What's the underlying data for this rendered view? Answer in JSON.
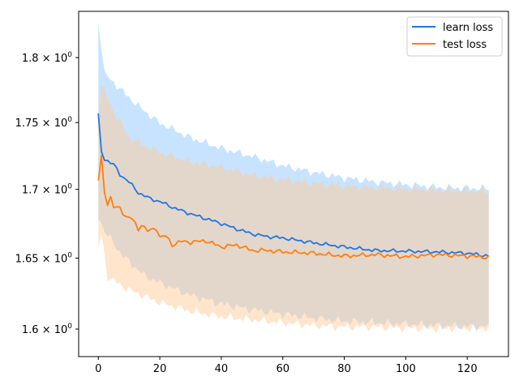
{
  "chart_data": {
    "type": "line",
    "title": "",
    "xlabel": "",
    "ylabel": "",
    "yscale": "log",
    "xlim": [
      -6.4,
      133.4
    ],
    "ylim": [
      1.581,
      1.8365
    ],
    "grid": false,
    "legend_position": "top-right",
    "x_ticks": [
      0,
      20,
      40,
      60,
      80,
      100,
      120
    ],
    "x_tick_labels": [
      "0",
      "20",
      "40",
      "60",
      "80",
      "100",
      "120"
    ],
    "y_ticks": [
      1.6,
      1.65,
      1.7,
      1.75,
      1.8
    ],
    "y_tick_labels": [
      {
        "mantissa": "1.6",
        "times": "×",
        "base": "10",
        "exp": "0"
      },
      {
        "mantissa": "1.65",
        "times": "×",
        "base": "10",
        "exp": "0"
      },
      {
        "mantissa": "1.7",
        "times": "×",
        "base": "10",
        "exp": "0"
      },
      {
        "mantissa": "1.75",
        "times": "×",
        "base": "10",
        "exp": "0"
      },
      {
        "mantissa": "1.8",
        "times": "×",
        "base": "10",
        "exp": "0"
      }
    ],
    "series": [
      {
        "name": "learn loss",
        "color": "#1f77e4",
        "band_color": "#99ccff",
        "anchors": [
          [
            0,
            1.7555
          ],
          [
            1,
            1.728
          ],
          [
            2,
            1.7225
          ],
          [
            5,
            1.7185
          ],
          [
            7,
            1.711
          ],
          [
            10,
            1.7055
          ],
          [
            13,
            1.6975
          ],
          [
            17,
            1.693
          ],
          [
            20,
            1.691
          ],
          [
            25,
            1.686
          ],
          [
            30,
            1.682
          ],
          [
            35,
            1.6785
          ],
          [
            40,
            1.675
          ],
          [
            45,
            1.671
          ],
          [
            50,
            1.6675
          ],
          [
            55,
            1.6655
          ],
          [
            60,
            1.6645
          ],
          [
            70,
            1.661
          ],
          [
            80,
            1.658
          ],
          [
            90,
            1.6555
          ],
          [
            100,
            1.655
          ],
          [
            110,
            1.6545
          ],
          [
            120,
            1.6535
          ],
          [
            127,
            1.6515
          ]
        ],
        "amplitude": 0.0015,
        "band_upper": [
          [
            0,
            1.8285
          ],
          [
            2,
            1.7875
          ],
          [
            8,
            1.7735
          ],
          [
            13,
            1.7625
          ],
          [
            20,
            1.7495
          ],
          [
            30,
            1.7385
          ],
          [
            40,
            1.7305
          ],
          [
            50,
            1.7245
          ],
          [
            60,
            1.7175
          ],
          [
            70,
            1.7125
          ],
          [
            80,
            1.7085
          ],
          [
            90,
            1.7055
          ],
          [
            100,
            1.7035
          ],
          [
            110,
            1.7015
          ],
          [
            127,
            1.7005
          ]
        ],
        "band_lower": [
          [
            0,
            1.6805
          ],
          [
            2,
            1.6695
          ],
          [
            8,
            1.6515
          ],
          [
            15,
            1.6375
          ],
          [
            20,
            1.6325
          ],
          [
            30,
            1.6235
          ],
          [
            40,
            1.6175
          ],
          [
            50,
            1.6135
          ],
          [
            60,
            1.6105
          ],
          [
            70,
            1.6075
          ],
          [
            80,
            1.6055
          ],
          [
            90,
            1.6045
          ],
          [
            100,
            1.6035
          ],
          [
            110,
            1.6025
          ],
          [
            127,
            1.6015
          ]
        ],
        "band_amplitude": 0.0035
      },
      {
        "name": "test loss",
        "color": "#ff7f0e",
        "band_color": "#ffcc99",
        "anchors": [
          [
            0,
            1.707
          ],
          [
            1,
            1.7235
          ],
          [
            2,
            1.698
          ],
          [
            3,
            1.6895
          ],
          [
            4,
            1.694
          ],
          [
            5,
            1.687
          ],
          [
            7,
            1.686
          ],
          [
            9,
            1.68
          ],
          [
            11,
            1.6785
          ],
          [
            13,
            1.6705
          ],
          [
            14,
            1.6745
          ],
          [
            16,
            1.6695
          ],
          [
            19,
            1.6715
          ],
          [
            20,
            1.665
          ],
          [
            22,
            1.666
          ],
          [
            24,
            1.6595
          ],
          [
            27,
            1.662
          ],
          [
            30,
            1.6615
          ],
          [
            35,
            1.6625
          ],
          [
            40,
            1.658
          ],
          [
            45,
            1.6595
          ],
          [
            50,
            1.6555
          ],
          [
            55,
            1.6555
          ],
          [
            60,
            1.6545
          ],
          [
            70,
            1.6535
          ],
          [
            80,
            1.6515
          ],
          [
            90,
            1.6525
          ],
          [
            100,
            1.651
          ],
          [
            110,
            1.6525
          ],
          [
            120,
            1.6515
          ],
          [
            127,
            1.6505
          ]
        ],
        "amplitude": 0.0018,
        "band_upper": [
          [
            0,
            1.7585
          ],
          [
            1,
            1.7795
          ],
          [
            2,
            1.7735
          ],
          [
            5,
            1.7585
          ],
          [
            10,
            1.7385
          ],
          [
            20,
            1.7275
          ],
          [
            30,
            1.7205
          ],
          [
            40,
            1.7165
          ],
          [
            50,
            1.7105
          ],
          [
            60,
            1.7075
          ],
          [
            70,
            1.7045
          ],
          [
            80,
            1.7025
          ],
          [
            90,
            1.7015
          ],
          [
            100,
            1.7005
          ],
          [
            110,
            1.6995
          ],
          [
            127,
            1.6985
          ]
        ],
        "band_lower": [
          [
            0,
            1.6555
          ],
          [
            1,
            1.6675
          ],
          [
            3,
            1.6365
          ],
          [
            10,
            1.6275
          ],
          [
            20,
            1.6185
          ],
          [
            30,
            1.6125
          ],
          [
            40,
            1.6085
          ],
          [
            50,
            1.6065
          ],
          [
            60,
            1.6045
          ],
          [
            70,
            1.6025
          ],
          [
            80,
            1.6015
          ],
          [
            90,
            1.6015
          ],
          [
            100,
            1.6005
          ],
          [
            110,
            1.6005
          ],
          [
            127,
            1.6005
          ]
        ],
        "band_amplitude": 0.0035
      }
    ]
  }
}
